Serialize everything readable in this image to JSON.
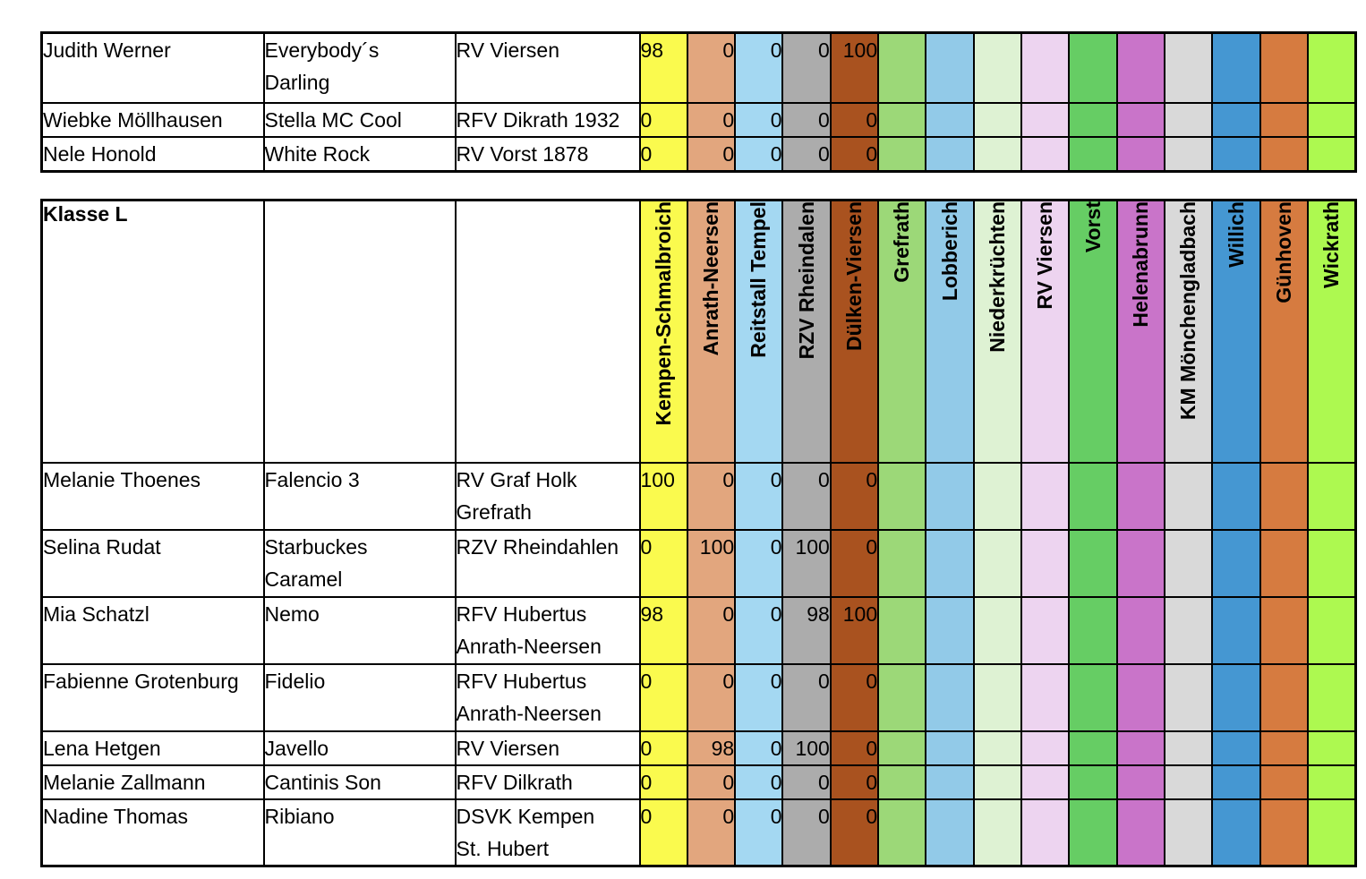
{
  "columns": [
    {
      "label": "Kempen-Schmalbroich",
      "color": "#FAFA4E"
    },
    {
      "label": "Anrath-Neersen",
      "color": "#E2A67E"
    },
    {
      "label": "Reitstall Tempel",
      "color": "#A4D8F2"
    },
    {
      "label": "RZV Rheindalen",
      "color": "#ACACAC"
    },
    {
      "label": "Dülken-Viersen",
      "color": "#A9521F"
    },
    {
      "label": "Grefrath",
      "color": "#9CD878"
    },
    {
      "label": "Lobberich",
      "color": "#92CAE8"
    },
    {
      "label": "Niederkrüchten",
      "color": "#DEF2D3"
    },
    {
      "label": "RV Viersen",
      "color": "#EDD4F0"
    },
    {
      "label": "Vorst",
      "color": "#66CD64"
    },
    {
      "label": "Helenabrunn",
      "color": "#C974C9"
    },
    {
      "label": "KM Mönchengladbach",
      "color": "#D9D9D9"
    },
    {
      "label": "Willich",
      "color": "#4597D2"
    },
    {
      "label": "Günhoven",
      "color": "#D67B40"
    },
    {
      "label": "Wickrath",
      "color": "#ADF950"
    }
  ],
  "top_table": {
    "rows": [
      {
        "rider": "Judith Werner",
        "horse": "Everybody´s\nDarling",
        "club": "RV Viersen",
        "scores": [
          "98",
          "0",
          "0",
          "0",
          "100"
        ]
      },
      {
        "rider": "Wiebke Möllhausen",
        "horse": "Stella MC Cool",
        "club": "RFV Dikrath 1932",
        "scores": [
          "0",
          "0",
          "0",
          "0",
          "0"
        ]
      },
      {
        "rider": "Nele Honold",
        "horse": "White Rock",
        "club": "RV Vorst 1878",
        "scores": [
          "0",
          "0",
          "0",
          "0",
          "0"
        ]
      }
    ]
  },
  "bottom_table": {
    "title": "Klasse L",
    "rows": [
      {
        "rider": "Melanie Thoenes",
        "horse": "Falencio 3",
        "club": "RV Graf Holk\nGrefrath",
        "scores": [
          "100",
          "0",
          "0",
          "0",
          "0"
        ]
      },
      {
        "rider": "Selina Rudat",
        "horse": "Starbuckes\nCaramel",
        "club": "RZV Rheindahlen",
        "scores": [
          "0",
          "100",
          "0",
          "100",
          "0"
        ]
      },
      {
        "rider": "Mia Schatzl",
        "horse": "Nemo",
        "club": "RFV Hubertus\nAnrath-Neersen",
        "scores": [
          "98",
          "0",
          "0",
          "98",
          "100"
        ]
      },
      {
        "rider": "Fabienne Grotenburg",
        "horse": "Fidelio",
        "club": "RFV Hubertus\nAnrath-Neersen",
        "scores": [
          "0",
          "0",
          "0",
          "0",
          "0"
        ]
      },
      {
        "rider": "Lena Hetgen",
        "horse": "Javello",
        "club": "RV Viersen",
        "scores": [
          "0",
          "98",
          "0",
          "100",
          "0"
        ]
      },
      {
        "rider": "Melanie Zallmann",
        "horse": "Cantinis Son",
        "club": "RFV Dilkrath",
        "scores": [
          "0",
          "0",
          "0",
          "0",
          "0"
        ]
      },
      {
        "rider": "Nadine Thomas",
        "horse": "Ribiano",
        "club": "DSVK Kempen\nSt. Hubert",
        "scores": [
          "0",
          "0",
          "0",
          "0",
          "0"
        ]
      }
    ]
  }
}
